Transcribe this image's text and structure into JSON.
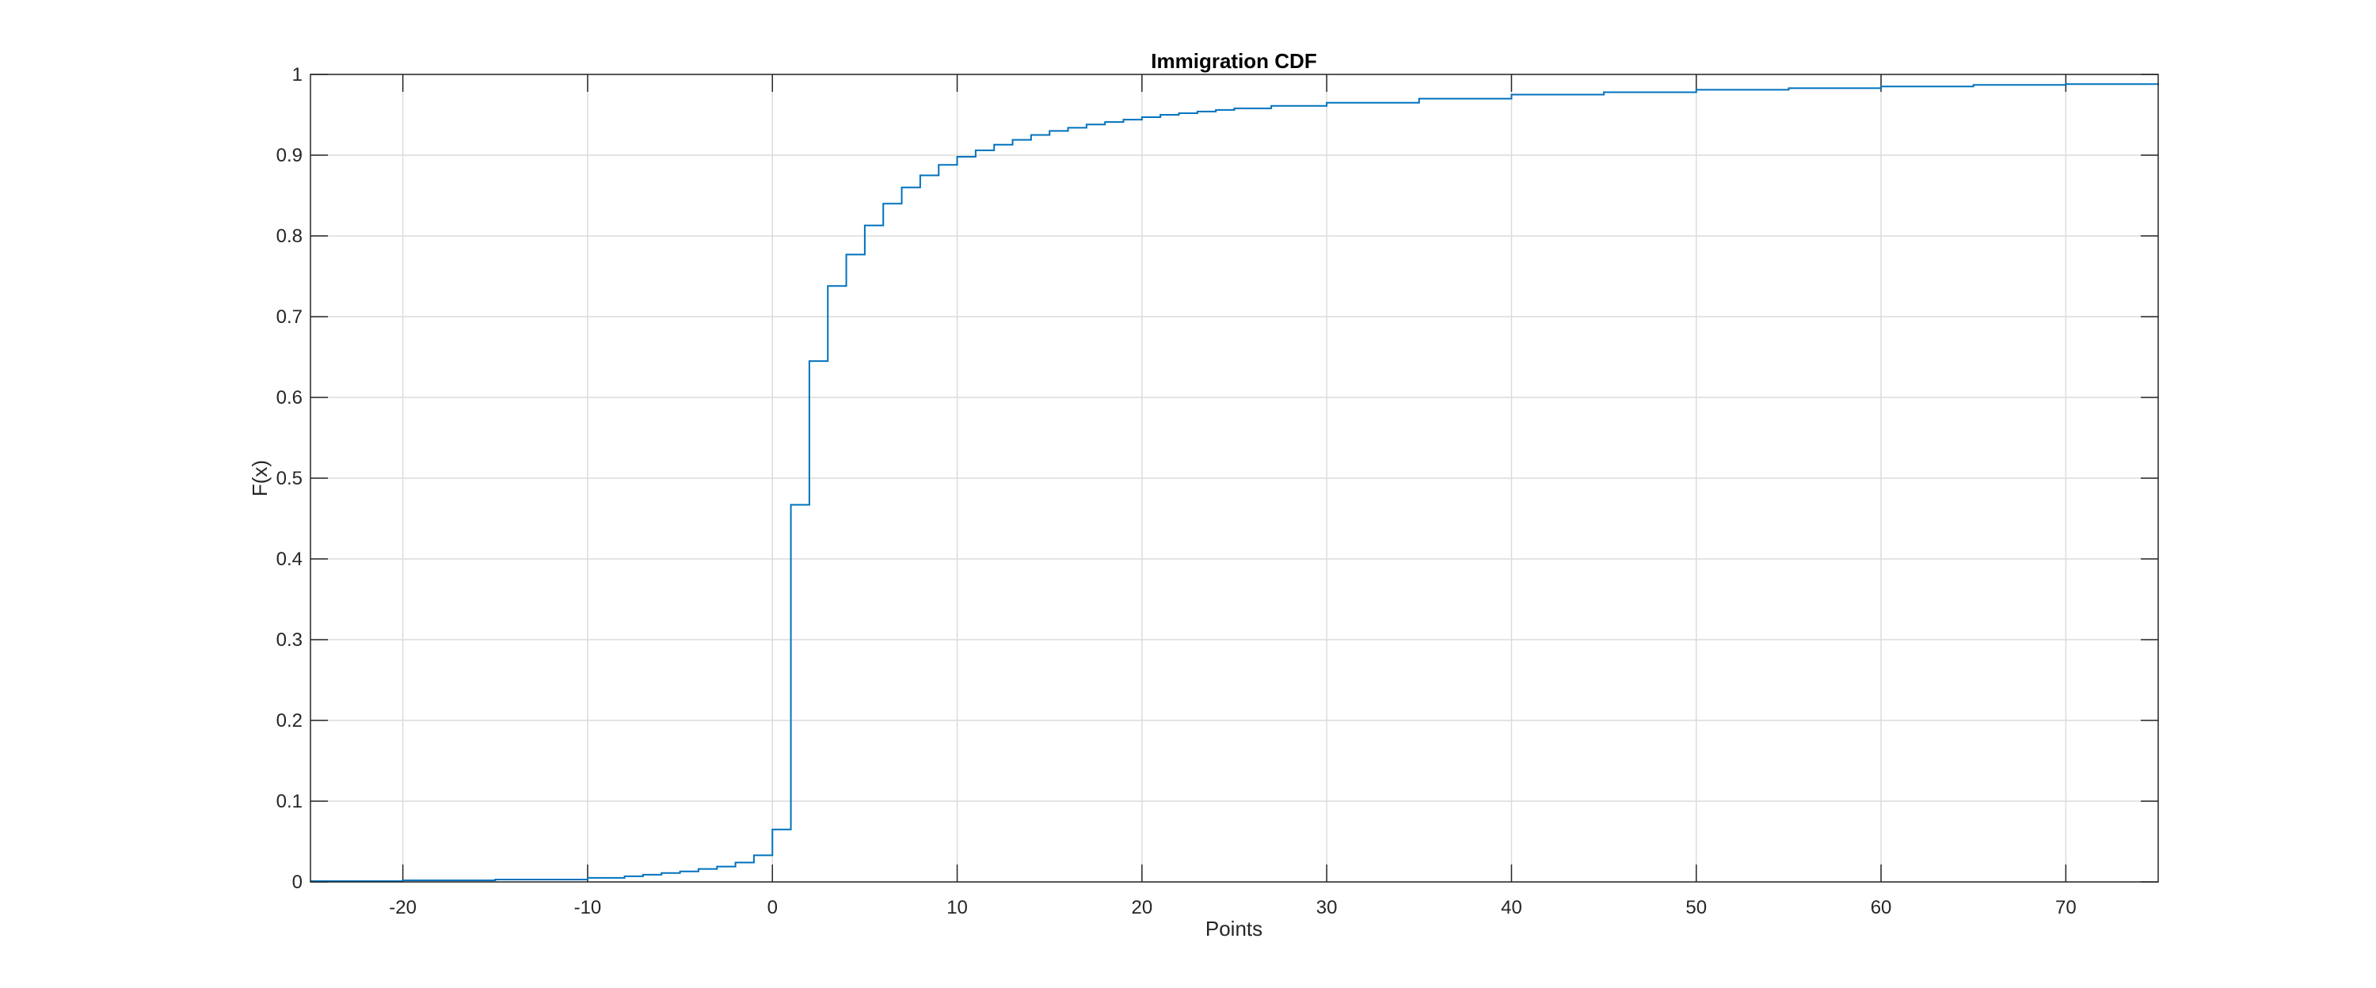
{
  "chart_data": {
    "type": "line",
    "title": "Immigration CDF",
    "xlabel": "Points",
    "ylabel": "F(x)",
    "xlim": [
      -25,
      75
    ],
    "ylim": [
      0,
      1
    ],
    "xticks": [
      -20,
      -10,
      0,
      10,
      20,
      30,
      40,
      50,
      60,
      70
    ],
    "yticks": [
      0,
      0.1,
      0.2,
      0.3,
      0.4,
      0.5,
      0.6,
      0.7,
      0.8,
      0.9,
      1
    ],
    "grid": true,
    "step": true,
    "color": "#0072BD",
    "series": [
      {
        "x": [
          -25,
          -20,
          -15,
          -10,
          -8,
          -7,
          -6,
          -5,
          -4,
          -3,
          -2,
          -1,
          0,
          1,
          2,
          3,
          4,
          5,
          6,
          7,
          8,
          9,
          10,
          11,
          12,
          13,
          14,
          15,
          16,
          17,
          18,
          19,
          20,
          21,
          22,
          23,
          24,
          25,
          27,
          30,
          35,
          40,
          45,
          50,
          55,
          60,
          65,
          70,
          75
        ],
        "y": [
          0.001,
          0.002,
          0.003,
          0.005,
          0.007,
          0.009,
          0.011,
          0.013,
          0.016,
          0.019,
          0.024,
          0.033,
          0.065,
          0.467,
          0.645,
          0.738,
          0.777,
          0.813,
          0.84,
          0.86,
          0.875,
          0.888,
          0.898,
          0.906,
          0.913,
          0.919,
          0.925,
          0.93,
          0.934,
          0.938,
          0.941,
          0.944,
          0.947,
          0.95,
          0.952,
          0.954,
          0.956,
          0.958,
          0.961,
          0.965,
          0.97,
          0.975,
          0.978,
          0.981,
          0.983,
          0.985,
          0.987,
          0.988,
          0.989
        ]
      }
    ]
  }
}
